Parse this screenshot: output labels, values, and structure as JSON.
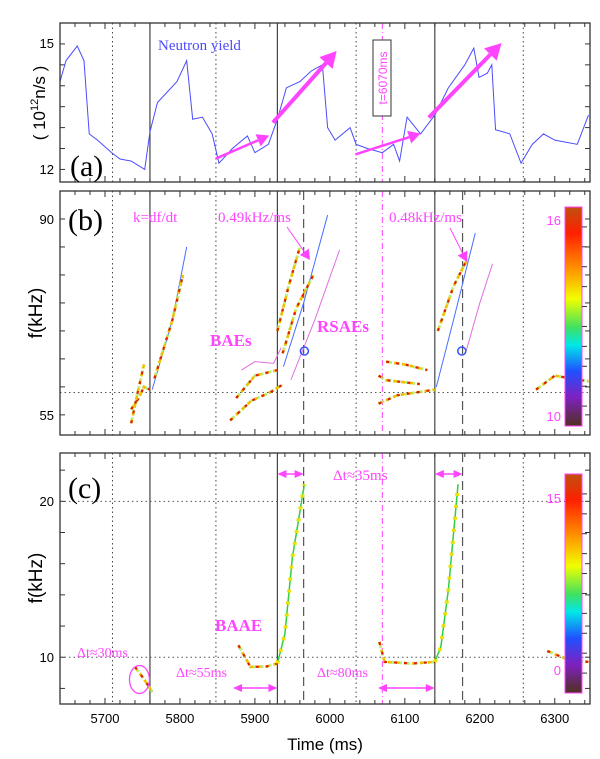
{
  "chart_data": [
    {
      "panel_label": "(a)",
      "type": "line",
      "ylabel": "( 10¹²n/s )",
      "ylabel_base": "( 10",
      "ylabel_exp": "12",
      "ylabel_unit": "n/s )",
      "xlim": [
        5640,
        6347
      ],
      "ylim": [
        11.7,
        15.5
      ],
      "yticks": [
        12,
        15
      ],
      "legend": "Neutron yield",
      "series": [
        {
          "name": "Neutron yield",
          "color": "#4b4bff",
          "x": [
            5640,
            5648,
            5663,
            5672,
            5679,
            5690,
            5709,
            5720,
            5735,
            5753,
            5760,
            5770,
            5796,
            5809,
            5817,
            5830,
            5843,
            5852,
            5870,
            5890,
            5900,
            5918,
            5930,
            5942,
            5960,
            5975,
            5990,
            5997,
            6007,
            6027,
            6035,
            6050,
            6070,
            6085,
            6093,
            6103,
            6121,
            6140,
            6158,
            6180,
            6192,
            6199,
            6210,
            6216,
            6221,
            6240,
            6255,
            6270,
            6285,
            6300,
            6330,
            6345
          ],
          "y": [
            14.1,
            14.6,
            14.95,
            14.6,
            12.85,
            12.7,
            12.4,
            12.25,
            12.2,
            12.0,
            12.9,
            13.6,
            14.1,
            14.6,
            13.2,
            13.25,
            12.85,
            12.15,
            12.5,
            12.8,
            12.4,
            12.6,
            13.2,
            13.95,
            14.1,
            14.35,
            14.5,
            13.0,
            12.7,
            13.0,
            12.6,
            12.5,
            12.4,
            12.6,
            12.2,
            13.25,
            12.85,
            13.3,
            13.95,
            14.5,
            14.9,
            14.2,
            14.3,
            14.5,
            12.95,
            12.85,
            12.15,
            12.6,
            12.85,
            12.7,
            12.6,
            13.3
          ]
        }
      ],
      "arrows": [
        {
          "from": [
            5848,
            12.26
          ],
          "to": [
            5919,
            12.81
          ]
        },
        {
          "from": [
            5924,
            13.12
          ],
          "to": [
            6009,
            14.83
          ]
        },
        {
          "from": [
            6034,
            12.36
          ],
          "to": [
            6121,
            12.86
          ]
        },
        {
          "from": [
            6132,
            13.24
          ],
          "to": [
            6229,
            15.02
          ]
        }
      ],
      "marker_label": "t=6070ms"
    },
    {
      "panel_label": "(b)",
      "type": "heatmap",
      "ylabel": "f(kHz)",
      "xlim": [
        5640,
        6347
      ],
      "ylim": [
        51.4,
        95
      ],
      "yticks": [
        55,
        90
      ],
      "hline": 59,
      "colorbar": {
        "max_label": "16",
        "min_label": "10"
      },
      "modes": [
        {
          "style": "rainbow",
          "t": [
            5735,
            5745,
            5752,
            5760
          ],
          "f": [
            56,
            58,
            60,
            59.5
          ]
        },
        {
          "style": "rainbow",
          "t": [
            5735,
            5742,
            5752
          ],
          "f": [
            53.5,
            58,
            64
          ]
        },
        {
          "style": "blue",
          "t": [
            5763,
            5790,
            5809
          ],
          "f": [
            59.5,
            72,
            85
          ]
        },
        {
          "style": "rainbow",
          "t": [
            5766,
            5790,
            5804
          ],
          "f": [
            61.5,
            72,
            80
          ]
        },
        {
          "style": "rainbow",
          "t": [
            5867,
            5895,
            5920,
            5937
          ],
          "f": [
            54,
            57.5,
            59,
            60.4
          ]
        },
        {
          "style": "rainbow",
          "t": [
            5875,
            5900,
            5930
          ],
          "f": [
            58,
            62,
            63
          ]
        },
        {
          "style": "magenta",
          "t": [
            5882,
            5900,
            5925,
            5935
          ],
          "f": [
            63,
            64.5,
            64.2,
            67
          ]
        },
        {
          "style": "blue",
          "t": [
            5938,
            5965,
            5997
          ],
          "f": [
            63.6,
            75,
            90.7
          ]
        },
        {
          "style": "magenta",
          "t": [
            5948,
            5980,
            6013
          ],
          "f": [
            61.25,
            72,
            84.5
          ]
        },
        {
          "style": "rainbow",
          "t": [
            5930,
            5945,
            5960
          ],
          "f": [
            70,
            78,
            85
          ]
        },
        {
          "style": "rainbow",
          "t": [
            5937,
            5955,
            5978
          ],
          "f": [
            66,
            74,
            80
          ]
        },
        {
          "style": "rainbow",
          "t": [
            6065,
            6075,
            6120
          ],
          "f": [
            62,
            61.2,
            60.5
          ]
        },
        {
          "style": "rainbow",
          "t": [
            6065,
            6090,
            6140
          ],
          "f": [
            57,
            58.5,
            59.5
          ]
        },
        {
          "style": "rainbow",
          "t": [
            6075,
            6100,
            6130
          ],
          "f": [
            64.5,
            64,
            63
          ]
        },
        {
          "style": "blue",
          "t": [
            6142,
            6165,
            6194
          ],
          "f": [
            60,
            72,
            87.5
          ]
        },
        {
          "style": "magenta",
          "t": [
            6182,
            6200,
            6217
          ],
          "f": [
            66.5,
            75,
            82
          ]
        },
        {
          "style": "rainbow",
          "t": [
            6144,
            6165,
            6184
          ],
          "f": [
            70,
            78,
            83
          ]
        },
        {
          "style": "rainbow",
          "t": [
            6275,
            6300,
            6345
          ],
          "f": [
            59.5,
            62,
            61
          ]
        }
      ],
      "circles": [
        [
          5966,
          66.4
        ],
        [
          6176,
          66.4
        ]
      ],
      "annotations": [
        "k=df/dt",
        "0.49kHz/ms",
        "0.48kHz/ms",
        "BAEs",
        "RSAEs"
      ]
    },
    {
      "panel_label": "(c)",
      "type": "heatmap",
      "ylabel": "f(kHz)",
      "xlabel": "Time (ms)",
      "xlim": [
        5640,
        6347
      ],
      "ylim": [
        7.0,
        23.1
      ],
      "yticks": [
        10,
        20
      ],
      "xticks": [
        5700,
        5800,
        5900,
        6000,
        6100,
        6200,
        6300
      ],
      "hlines": [
        10,
        20
      ],
      "colorbar": {
        "max_label": "15",
        "min_label": "0"
      },
      "modes": [
        {
          "style": "rainbow",
          "t": [
            5740,
            5752,
            5763
          ],
          "f": [
            9.38,
            8.6,
            7.78
          ]
        },
        {
          "style": "rainbow",
          "t": [
            5878,
            5894,
            5915,
            5930
          ],
          "f": [
            10.77,
            9.38,
            9.4,
            9.6
          ]
        },
        {
          "style": "green",
          "t": [
            5930,
            5940,
            5950,
            5966
          ],
          "f": [
            9.6,
            11.5,
            16.4,
            21.1
          ]
        },
        {
          "style": "rainbow",
          "t": [
            6066,
            6073,
            6110,
            6140
          ],
          "f": [
            10.98,
            9.7,
            9.6,
            9.7
          ]
        },
        {
          "style": "green",
          "t": [
            6140,
            6148,
            6158,
            6171
          ],
          "f": [
            9.7,
            10.66,
            14.3,
            21.1
          ]
        },
        {
          "style": "rainbow",
          "t": [
            6290,
            6320,
            6345
          ],
          "f": [
            10.4,
            9.8,
            9.7
          ]
        }
      ],
      "ellipse_center": [
        5746,
        8.57
      ],
      "annotations": [
        "Δt≈35ms",
        "BAAE",
        "Δt≈30ms",
        "Δt≈55ms",
        "Δt≈80ms"
      ]
    }
  ],
  "vlines": {
    "solid": [
      5760,
      5930,
      6140
    ],
    "dotted": [
      5710,
      5848,
      6035,
      6258
    ],
    "dashed": [
      5965,
      6177
    ],
    "dashdot_magenta": [
      6070
    ]
  },
  "colors": {
    "annotation": "#ff44ff",
    "yield": "#4b4bff",
    "frame": "#333333"
  }
}
